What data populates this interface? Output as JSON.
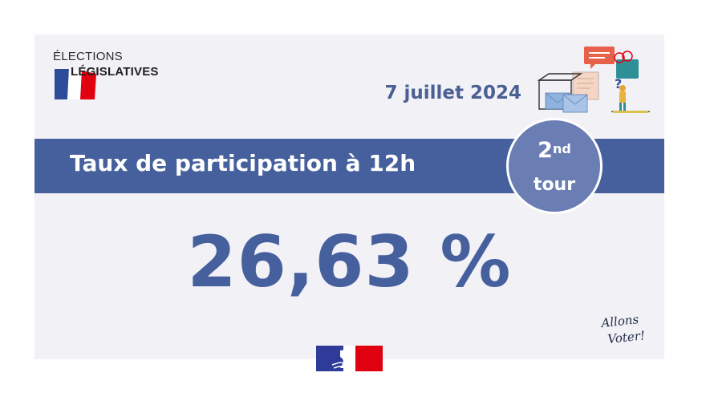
{
  "logo": {
    "line1": "ÉLECTIONS",
    "line2": "LÉGISLATIVES",
    "flag_colors": [
      "#2e4b9a",
      "#ffffff",
      "#e1000f"
    ]
  },
  "header": {
    "date": "7 juillet 2024"
  },
  "banner": {
    "title": "Taux de participation à 12h",
    "badge_number": "2",
    "badge_suffix": "nd",
    "badge_word": "tour"
  },
  "result": {
    "rate": "26,63 %"
  },
  "signature": {
    "text": "Allons Voter!"
  },
  "emblem": {
    "name": "marianne-logo"
  },
  "colors": {
    "primary": "#46609d",
    "badge": "#6b7eb4",
    "background": "#f1f1f6",
    "accent_red": "#e1000f"
  },
  "icons": [
    "ballot-box-illustration",
    "french-flag-icon",
    "marianne-logo"
  ]
}
